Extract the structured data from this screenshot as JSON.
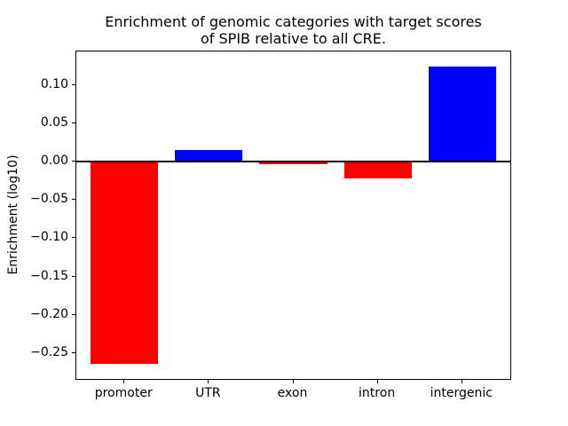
{
  "figure": {
    "title_line1": "Enrichment of genomic categories with target scores",
    "title_line2": "of SPIB relative to all CRE.",
    "ylabel": "Enrichment (log10)"
  },
  "chart_data": {
    "type": "bar",
    "title": "Enrichment of genomic categories with target scores of SPIB relative to all CRE.",
    "xlabel": "",
    "ylabel": "Enrichment (log10)",
    "categories": [
      "promoter",
      "UTR",
      "exon",
      "intron",
      "intergenic"
    ],
    "values": [
      -0.264,
      0.015,
      -0.004,
      -0.022,
      0.124
    ],
    "bar_colors": [
      "#ff0000",
      "#0000ff",
      "#ff0000",
      "#ff0000",
      "#0000ff"
    ],
    "positive_color": "#0000ff",
    "negative_color": "#ff0000",
    "yticks": [
      0.1,
      0.05,
      0.0,
      -0.05,
      -0.1,
      -0.15,
      -0.2,
      -0.25
    ],
    "ytick_labels": [
      "0.10",
      "0.05",
      "0.00",
      "−0.05",
      "−0.10",
      "−0.15",
      "−0.20",
      "−0.25"
    ],
    "ylim": [
      -0.2834,
      0.1434
    ],
    "xlim": [
      -0.57,
      4.57
    ],
    "bar_width": 0.8,
    "grid": false,
    "zero_line": true,
    "legend": false
  }
}
